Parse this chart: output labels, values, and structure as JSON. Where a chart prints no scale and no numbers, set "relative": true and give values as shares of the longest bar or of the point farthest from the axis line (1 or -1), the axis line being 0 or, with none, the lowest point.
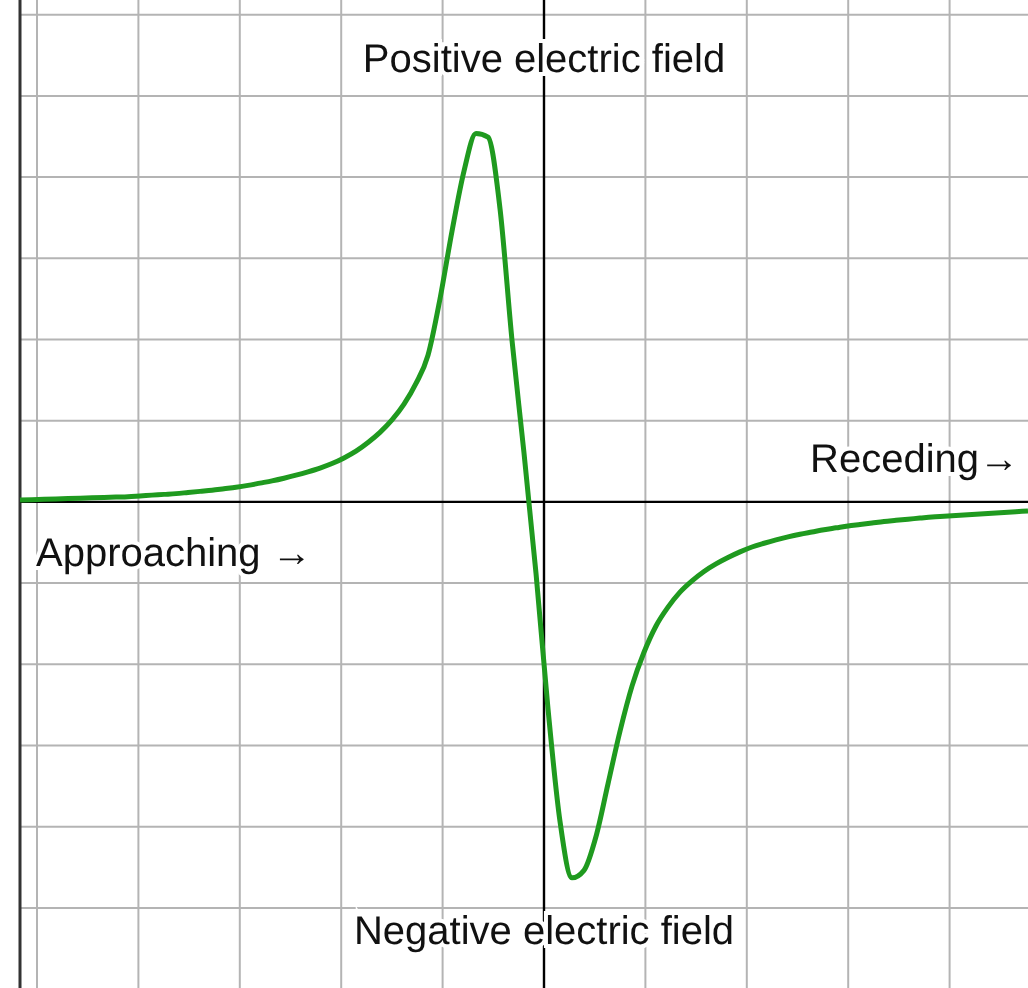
{
  "chart_data": {
    "type": "line",
    "relative": true,
    "grid": true,
    "line_style": "solid",
    "categories": [
      null,
      null,
      null,
      null,
      null,
      null,
      null,
      null,
      null,
      null,
      null,
      null,
      null,
      null,
      null,
      null,
      null,
      null,
      null,
      null,
      null,
      null,
      null,
      null,
      null,
      null,
      null,
      null,
      null,
      null,
      null,
      null,
      null,
      null,
      null,
      null,
      null,
      null,
      null,
      null,
      null,
      null,
      null,
      null,
      null,
      null,
      null,
      null,
      null,
      null,
      null,
      null,
      null,
      null,
      null,
      null,
      null,
      null,
      null,
      null,
      null,
      null,
      null,
      null,
      null,
      null,
      null,
      null,
      null,
      null,
      null,
      null,
      null,
      null,
      null,
      null,
      null,
      null,
      null,
      null,
      null,
      null,
      null,
      null,
      null
    ],
    "series": [
      {
        "color": "#1f9a1f",
        "values": [
          0.005,
          0.006,
          0.007,
          0.008,
          0.009,
          0.01,
          0.011,
          0.012,
          0.013,
          0.014,
          0.016,
          0.018,
          0.02,
          0.022,
          0.025,
          0.028,
          0.031,
          0.035,
          0.039,
          0.044,
          0.05,
          0.056,
          0.063,
          0.071,
          0.08,
          0.09,
          0.102,
          0.117,
          0.135,
          0.158,
          0.185,
          0.218,
          0.26,
          0.315,
          0.39,
          0.54,
          0.72,
          0.88,
          0.98,
          0.97,
          0.78,
          0.43,
          0.13,
          -0.19,
          -0.55,
          -0.85,
          -1,
          -0.98,
          -0.89,
          -0.75,
          -0.61,
          -0.49,
          -0.4,
          -0.33,
          -0.28,
          -0.24,
          -0.21,
          -0.185,
          -0.165,
          -0.148,
          -0.133,
          -0.12,
          -0.11,
          -0.101,
          -0.093,
          -0.086,
          -0.08,
          -0.074,
          -0.069,
          -0.064,
          -0.06,
          -0.056,
          -0.052,
          -0.049,
          -0.046,
          -0.043,
          -0.04,
          -0.038,
          -0.036,
          -0.034,
          -0.032,
          -0.03,
          -0.028,
          -0.026,
          -0.024
        ]
      }
    ],
    "annotations": [
      "Positive electric field",
      "Negative electric field",
      "Receding→",
      "Approaching →"
    ]
  }
}
